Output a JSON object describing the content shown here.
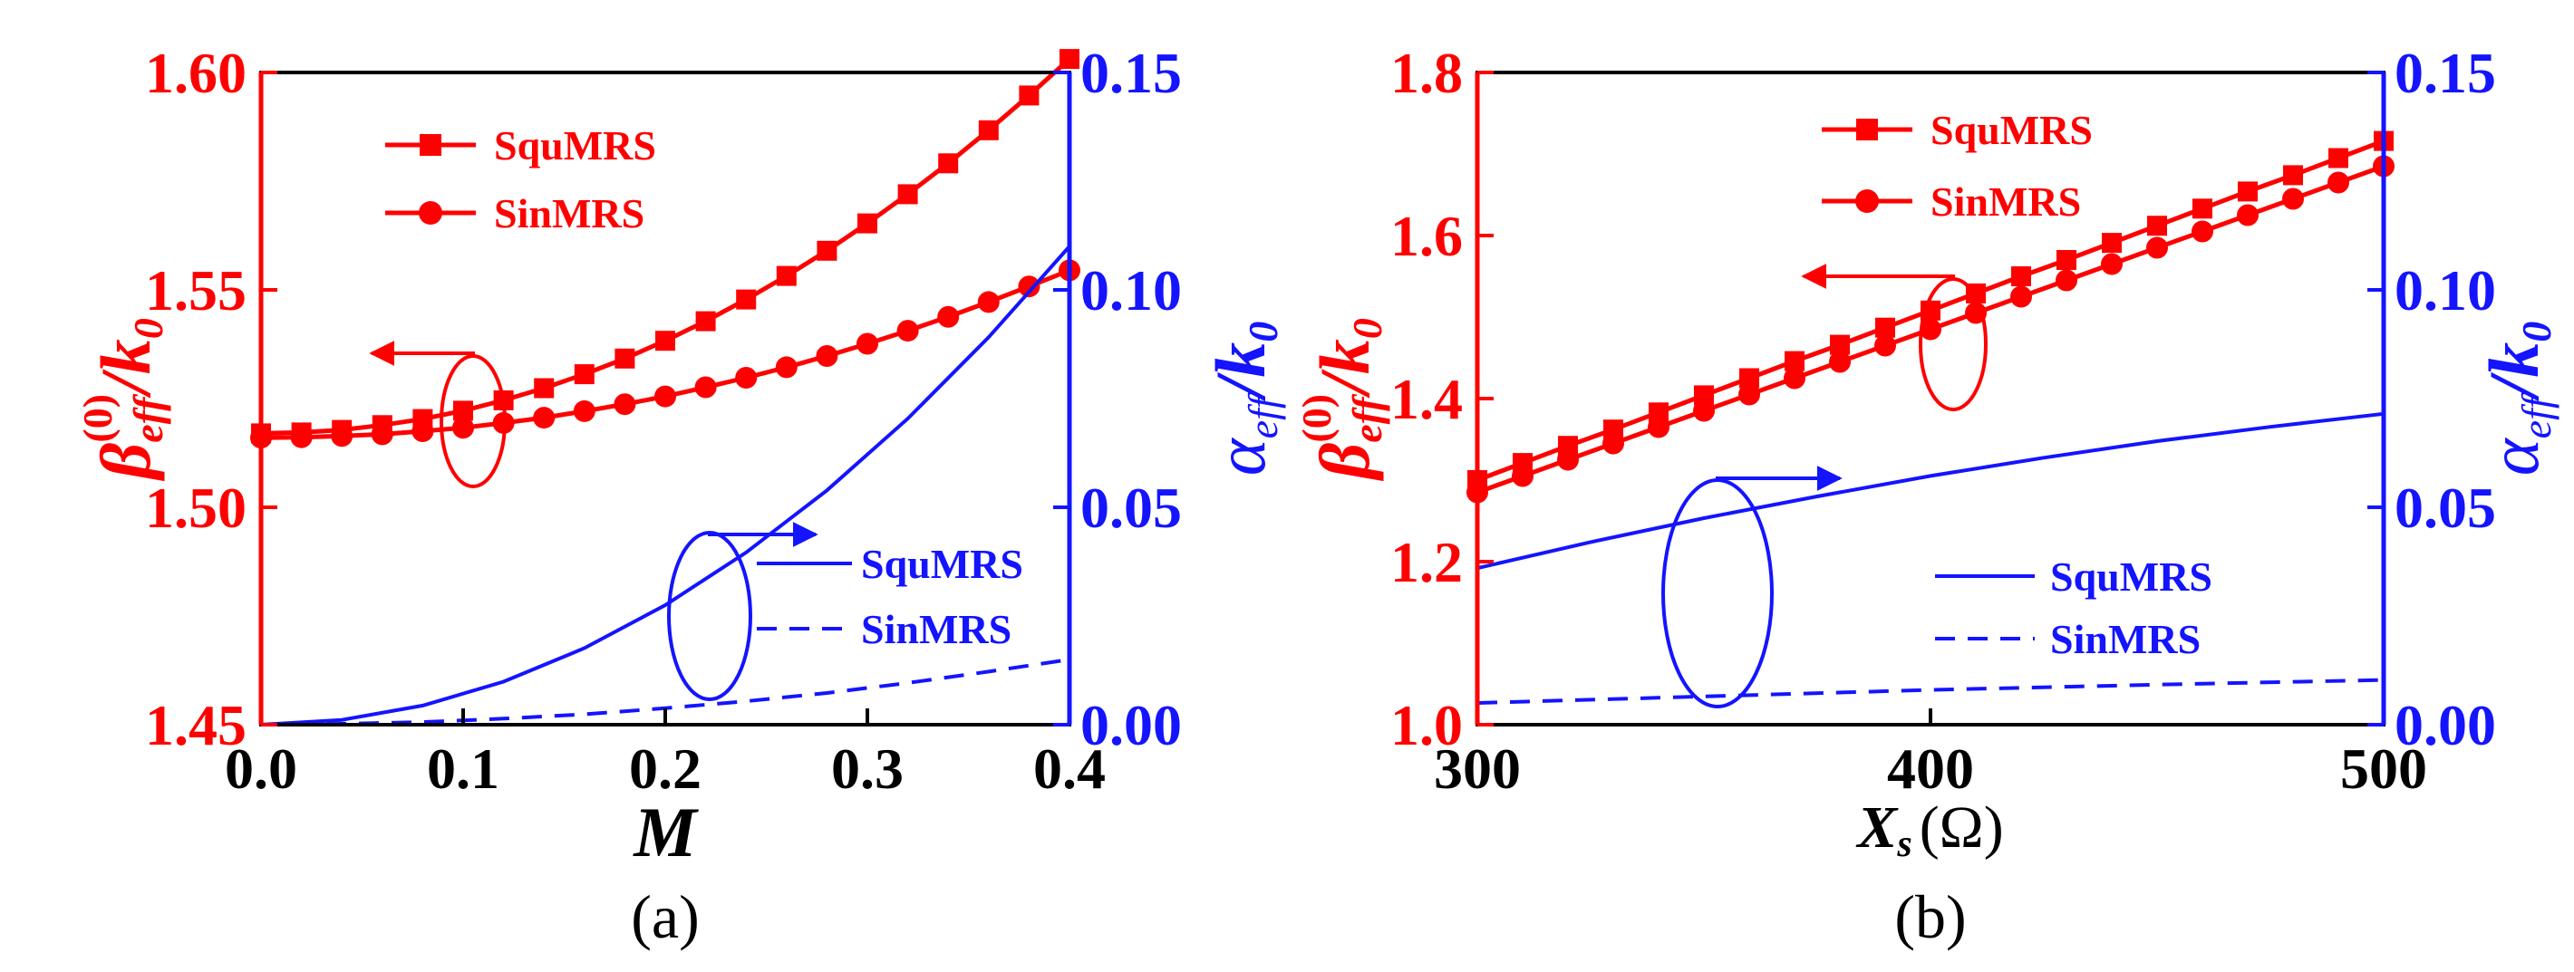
{
  "colors": {
    "beta": "#ff0000",
    "alpha": "#1414ff",
    "axis": "#000000"
  },
  "chart_data": [
    {
      "type": "line",
      "panel_label": "(a)",
      "xlabel": "M",
      "ylabel_left": {
        "main": "β",
        "sub": "eff",
        "sup": "(0)",
        "tail": "/k",
        "tail_sub": "0"
      },
      "ylabel_right": {
        "main": "α",
        "sub": "eff",
        "tail": "/k",
        "tail_sub": "0"
      },
      "xlim": [
        0.0,
        0.4
      ],
      "ylim_left": [
        1.45,
        1.6
      ],
      "ylim_right": [
        0.0,
        0.15
      ],
      "xticks": [
        "0.0",
        "0.1",
        "0.2",
        "0.3",
        "0.4"
      ],
      "yticks_left": [
        "1.45",
        "1.50",
        "1.55",
        "1.60"
      ],
      "yticks_right": [
        "0.00",
        "0.05",
        "0.10",
        "0.15"
      ],
      "legend_beta": [
        "SquMRS",
        "SinMRS"
      ],
      "legend_alpha": [
        "SquMRS",
        "SinMRS"
      ],
      "series": [
        {
          "name": "SquMRS",
          "axis": "left",
          "style": "solid-square",
          "color": "#ff0000",
          "x": [
            0.0,
            0.02,
            0.04,
            0.06,
            0.08,
            0.1,
            0.12,
            0.14,
            0.16,
            0.18,
            0.2,
            0.22,
            0.24,
            0.26,
            0.28,
            0.3,
            0.32,
            0.34,
            0.36,
            0.38,
            0.4
          ],
          "y": [
            1.517,
            1.5172,
            1.5178,
            1.5189,
            1.5203,
            1.5222,
            1.5246,
            1.5274,
            1.5306,
            1.5342,
            1.5383,
            1.5428,
            1.5478,
            1.5532,
            1.559,
            1.5653,
            1.572,
            1.5791,
            1.5867,
            1.5947,
            1.6031
          ]
        },
        {
          "name": "SinMRS",
          "axis": "left",
          "style": "solid-circle",
          "color": "#ff0000",
          "x": [
            0.0,
            0.02,
            0.04,
            0.06,
            0.08,
            0.1,
            0.12,
            0.14,
            0.16,
            0.18,
            0.2,
            0.22,
            0.24,
            0.26,
            0.28,
            0.3,
            0.32,
            0.34,
            0.36,
            0.38,
            0.4
          ],
          "y": [
            1.516,
            1.5161,
            1.5164,
            1.5168,
            1.5175,
            1.5183,
            1.5194,
            1.5206,
            1.5221,
            1.5237,
            1.5255,
            1.5276,
            1.5298,
            1.5322,
            1.5348,
            1.5376,
            1.5406,
            1.5438,
            1.5472,
            1.5508,
            1.5545
          ]
        },
        {
          "name": "SquMRS",
          "axis": "right",
          "style": "solid",
          "color": "#1414ff",
          "x": [
            0.0,
            0.04,
            0.08,
            0.12,
            0.16,
            0.2,
            0.24,
            0.28,
            0.32,
            0.36,
            0.4
          ],
          "y": [
            0.0,
            0.0011,
            0.0044,
            0.0099,
            0.0176,
            0.0275,
            0.0396,
            0.0539,
            0.0704,
            0.0891,
            0.11
          ]
        },
        {
          "name": "SinMRS",
          "axis": "right",
          "style": "dashed",
          "color": "#1414ff",
          "x": [
            0.0,
            0.04,
            0.08,
            0.12,
            0.16,
            0.2,
            0.24,
            0.28,
            0.32,
            0.36,
            0.4
          ],
          "y": [
            0.0,
            0.0002,
            0.0006,
            0.0014,
            0.0024,
            0.0038,
            0.0054,
            0.0073,
            0.0096,
            0.0122,
            0.015
          ]
        }
      ]
    },
    {
      "type": "line",
      "panel_label": "(b)",
      "xlabel": "X",
      "xlabel_sub": "s",
      "xlabel_unit": "(Ω)",
      "ylabel_left": {
        "main": "β",
        "sub": "eff",
        "sup": "(0)",
        "tail": "/k",
        "tail_sub": "0"
      },
      "ylabel_right": {
        "main": "α",
        "sub": "eff",
        "tail": "/k",
        "tail_sub": "0"
      },
      "xlim": [
        300,
        500
      ],
      "ylim_left": [
        1.0,
        1.8
      ],
      "ylim_right": [
        0.0,
        0.15
      ],
      "xticks": [
        "300",
        "400",
        "500"
      ],
      "yticks_left": [
        "1.0",
        "1.2",
        "1.4",
        "1.6",
        "1.8"
      ],
      "yticks_right": [
        "0.00",
        "0.05",
        "0.10",
        "0.15"
      ],
      "legend_beta": [
        "SquMRS",
        "SinMRS"
      ],
      "legend_alpha": [
        "SquMRS",
        "SinMRS"
      ],
      "series": [
        {
          "name": "SquMRS",
          "axis": "left",
          "style": "solid-square",
          "color": "#ff0000",
          "x": [
            300,
            310,
            320,
            330,
            340,
            350,
            360,
            370,
            380,
            390,
            400,
            410,
            420,
            430,
            440,
            450,
            460,
            470,
            480,
            490,
            500
          ],
          "y": [
            1.3,
            1.321,
            1.342,
            1.362,
            1.383,
            1.404,
            1.425,
            1.446,
            1.466,
            1.487,
            1.508,
            1.529,
            1.55,
            1.57,
            1.591,
            1.612,
            1.633,
            1.654,
            1.674,
            1.695,
            1.716
          ]
        },
        {
          "name": "SinMRS",
          "axis": "left",
          "style": "solid-circle",
          "color": "#ff0000",
          "x": [
            300,
            310,
            320,
            330,
            340,
            350,
            360,
            370,
            380,
            390,
            400,
            410,
            420,
            430,
            440,
            450,
            460,
            470,
            480,
            490,
            500
          ],
          "y": [
            1.285,
            1.305,
            1.325,
            1.345,
            1.365,
            1.385,
            1.405,
            1.425,
            1.445,
            1.465,
            1.485,
            1.505,
            1.525,
            1.545,
            1.565,
            1.585,
            1.605,
            1.625,
            1.645,
            1.665,
            1.685
          ]
        },
        {
          "name": "SquMRS",
          "axis": "right",
          "style": "solid",
          "color": "#1414ff",
          "x": [
            300,
            325,
            350,
            375,
            400,
            425,
            450,
            475,
            500
          ],
          "y": [
            0.036,
            0.042,
            0.0475,
            0.0525,
            0.0572,
            0.0614,
            0.0652,
            0.0685,
            0.0715
          ]
        },
        {
          "name": "SinMRS",
          "axis": "right",
          "style": "dashed",
          "color": "#1414ff",
          "x": [
            300,
            350,
            400,
            450,
            500
          ],
          "y": [
            0.005,
            0.0065,
            0.008,
            0.0092,
            0.0103
          ]
        }
      ]
    }
  ]
}
